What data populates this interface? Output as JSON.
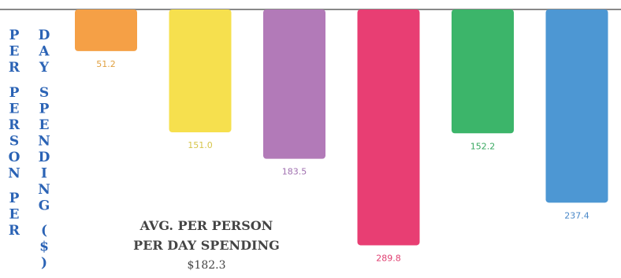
{
  "chart_data": {
    "type": "bar",
    "orientation": "vertical-hanging-from-top",
    "ylabel_left": "PER PERSON PER",
    "ylabel_right": "DAY SPENDING ($)",
    "categories": [
      "",
      "",
      "",
      "",
      "",
      ""
    ],
    "values": [
      51.2,
      151.0,
      183.5,
      289.8,
      152.2,
      237.4
    ],
    "value_labels": [
      "51.2",
      "151.0",
      "183.5",
      "289.8",
      "152.2",
      "237.4"
    ],
    "colors": [
      "#f5a046",
      "#f6e04e",
      "#b27ab8",
      "#e83e73",
      "#3cb56a",
      "#4d97d3"
    ],
    "label_colors": [
      "#e0a040",
      "#d6c54a",
      "#a070b0",
      "#e03e70",
      "#38a860",
      "#4a88c8"
    ],
    "ylim": [
      0,
      300
    ],
    "grid": false,
    "baseline_color": "#888888",
    "axis_color": "#2b63b5",
    "annotation": {
      "line1": "AVG. PER PERSON",
      "line2": "PER DAY SPENDING",
      "value": "$182.3"
    }
  }
}
